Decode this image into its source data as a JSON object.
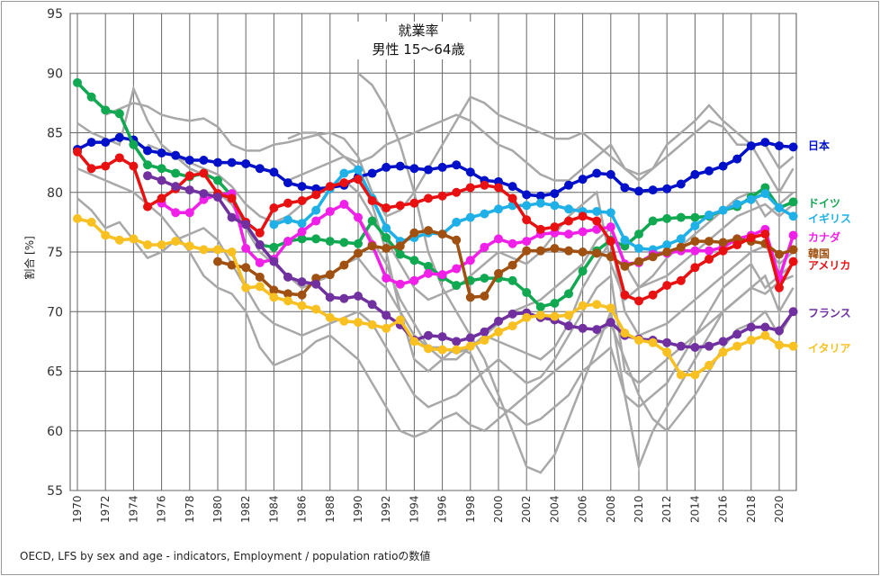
{
  "chart_data": {
    "type": "line",
    "title": "就業率",
    "subtitle": "男性 15〜64歳",
    "xlabel": "",
    "ylabel": "割合 [%]",
    "ylim": [
      55,
      95
    ],
    "xlim": [
      1970,
      2021
    ],
    "yticks": [
      "55",
      "60",
      "65",
      "70",
      "75",
      "80",
      "85",
      "90",
      "95"
    ],
    "xticks": [
      "1970",
      "1972",
      "1974",
      "1976",
      "1978",
      "1980",
      "1982",
      "1984",
      "1986",
      "1988",
      "1990",
      "1992",
      "1994",
      "1996",
      "1998",
      "2000",
      "2002",
      "2004",
      "2006",
      "2008",
      "2010",
      "2012",
      "2014",
      "2016",
      "2018",
      "2020"
    ],
    "grid": true,
    "legend": "right (direct labels)",
    "source": "OECD, LFS by sex and age - indicators, Employment / population ratioの数値",
    "series": [
      {
        "name": "日本",
        "color": "#0010c8",
        "start": 1970,
        "values": [
          83.6,
          84.2,
          84.2,
          84.6,
          84.4,
          83.5,
          83.3,
          83.1,
          82.7,
          82.7,
          82.5,
          82.5,
          82.4,
          82.0,
          81.7,
          80.8,
          80.5,
          80.3,
          80.4,
          80.6,
          81.3,
          81.6,
          82.1,
          82.2,
          82.0,
          81.9,
          82.1,
          82.3,
          81.7,
          81.0,
          80.9,
          80.5,
          79.8,
          79.7,
          79.9,
          80.6,
          81.1,
          81.6,
          81.5,
          80.4,
          80.1,
          80.2,
          80.3,
          80.7,
          81.5,
          81.8,
          82.2,
          82.8,
          83.9,
          84.2,
          83.9,
          83.8
        ]
      },
      {
        "name": "ドイツ",
        "color": "#10a850",
        "start": 1970,
        "values": [
          89.2,
          88.0,
          86.9,
          86.6,
          84.0,
          82.3,
          82.0,
          81.6,
          81.3,
          81.6,
          81.0,
          79.7,
          77.3,
          75.6,
          75.4,
          75.9,
          76.1,
          76.1,
          75.9,
          75.8,
          75.7,
          77.6,
          76.2,
          74.8,
          74.3,
          73.8,
          72.9,
          72.2,
          72.6,
          72.8,
          72.8,
          72.6,
          71.6,
          70.4,
          70.7,
          71.5,
          73.4,
          75.1,
          76.0,
          75.5,
          76.5,
          77.6,
          77.8,
          77.9,
          77.9,
          78.0,
          78.5,
          78.8,
          79.6,
          80.4,
          78.7,
          79.2
        ]
      },
      {
        "name": "イギリス",
        "color": "#20b0e8",
        "start": 1984,
        "values": [
          77.3,
          77.7,
          77.4,
          78.5,
          80.3,
          81.6,
          81.9,
          79.5,
          77.0,
          75.9,
          76.2,
          76.6,
          76.5,
          77.5,
          77.9,
          78.2,
          78.6,
          78.9,
          78.9,
          79.1,
          78.9,
          78.6,
          78.4,
          78.4,
          78.3,
          76.0,
          75.3,
          75.2,
          75.6,
          76.1,
          77.2,
          78.1,
          78.5,
          79.0,
          79.4,
          79.9,
          78.7,
          78.0
        ]
      },
      {
        "name": "カナダ",
        "color": "#f020e8",
        "start": 1976,
        "values": [
          79.1,
          78.3,
          78.3,
          79.4,
          79.8,
          79.9,
          75.3,
          74.1,
          74.4,
          75.9,
          76.7,
          77.6,
          78.4,
          79.0,
          77.9,
          75.6,
          72.8,
          72.3,
          72.6,
          73.2,
          73.1,
          73.6,
          74.3,
          75.4,
          76.1,
          75.7,
          75.9,
          76.5,
          76.6,
          76.5,
          76.7,
          76.9,
          77.1,
          74.0,
          74.1,
          74.8,
          74.9,
          75.1,
          75.1,
          75.1,
          75.4,
          76.1,
          76.4,
          76.9,
          72.8,
          76.4
        ]
      },
      {
        "name": "韓国",
        "color": "#a05010",
        "start": 1980,
        "values": [
          74.2,
          73.9,
          73.7,
          72.9,
          71.8,
          71.5,
          71.4,
          72.8,
          73.1,
          73.9,
          74.9,
          75.5,
          75.3,
          75.5,
          76.6,
          76.8,
          76.5,
          76.0,
          71.2,
          71.3,
          73.2,
          73.9,
          75.1,
          75.1,
          75.3,
          75.1,
          75.0,
          74.9,
          74.6,
          73.8,
          74.2,
          74.6,
          75.0,
          75.4,
          75.9,
          75.9,
          75.8,
          76.1,
          75.9,
          75.7,
          74.8,
          75.2
        ]
      },
      {
        "name": "アメリカ",
        "color": "#e81010",
        "start": 1970,
        "values": [
          83.4,
          82.0,
          82.2,
          82.9,
          82.2,
          78.8,
          79.5,
          80.3,
          81.4,
          81.6,
          79.9,
          79.5,
          77.5,
          76.6,
          78.7,
          79.1,
          79.3,
          79.8,
          80.5,
          80.8,
          81.1,
          79.3,
          78.7,
          78.9,
          79.1,
          79.5,
          79.7,
          80.0,
          80.4,
          80.6,
          80.4,
          79.5,
          77.7,
          76.9,
          77.1,
          77.6,
          78.0,
          77.6,
          75.9,
          71.4,
          70.9,
          71.4,
          72.2,
          72.6,
          73.7,
          74.4,
          75.1,
          75.6,
          76.2,
          76.5,
          72.0,
          74.2
        ]
      },
      {
        "name": "フランス",
        "color": "#7030a0",
        "start": 1975,
        "values": [
          81.4,
          81.0,
          80.5,
          80.2,
          79.9,
          79.6,
          77.9,
          77.3,
          75.6,
          74.2,
          72.9,
          72.5,
          72.3,
          71.2,
          71.1,
          71.3,
          70.6,
          69.7,
          68.9,
          67.6,
          68.0,
          67.9,
          67.5,
          67.8,
          68.3,
          69.2,
          69.8,
          69.9,
          69.5,
          69.3,
          68.8,
          68.6,
          68.5,
          69.1,
          68.0,
          67.7,
          67.6,
          67.4,
          67.1,
          67.0,
          67.1,
          67.5,
          68.1,
          68.7,
          68.7,
          68.4,
          70.0
        ]
      },
      {
        "name": "イタリア",
        "color": "#f8c020",
        "start": 1970,
        "values": [
          77.8,
          77.5,
          76.4,
          76.0,
          76.1,
          75.6,
          75.6,
          75.9,
          75.5,
          75.2,
          75.2,
          75.0,
          72.0,
          72.1,
          71.2,
          70.9,
          70.5,
          70.2,
          69.5,
          69.2,
          69.1,
          68.9,
          68.6,
          69.3,
          67.5,
          66.9,
          66.8,
          66.8,
          67.1,
          67.6,
          68.3,
          68.8,
          69.5,
          69.7,
          69.6,
          69.7,
          70.5,
          70.6,
          70.3,
          68.2,
          67.6,
          67.4,
          66.6,
          64.7,
          64.7,
          65.5,
          66.6,
          67.1,
          67.6,
          68.0,
          67.2,
          67.1
        ]
      }
    ],
    "other_series": [
      {
        "start": 1970,
        "values": [
          85.8,
          85.0,
          84.5,
          84.0,
          88.7,
          86.0,
          84.0,
          83.0,
          82.0,
          81.5,
          80.0,
          79.0,
          77.0,
          75.0,
          74.0,
          73.0,
          72.0,
          72.5,
          73.0,
          74.0,
          74.5,
          73.0,
          72.0,
          70.0,
          68.0,
          67.0,
          67.0,
          66.5,
          67.0,
          68.0,
          69.0,
          70.0,
          70.5,
          71.0,
          72.0,
          73.0,
          74.0,
          76.0,
          77.0,
          74.0,
          72.0,
          72.5,
          73.0,
          74.0,
          75.0,
          76.0,
          77.0,
          78.0,
          78.5,
          79.0,
          78.0,
          79.0
        ]
      },
      {
        "start": 1970,
        "values": [
          79.5,
          78.5,
          77.0,
          77.5,
          76.0,
          74.5,
          75.0,
          76.0,
          76.5,
          77.0,
          76.0,
          74.0,
          72.0,
          70.0,
          69.0,
          68.5,
          68.0,
          68.5,
          69.0,
          69.5,
          70.0,
          69.0,
          67.0,
          65.0,
          63.0,
          62.0,
          62.5,
          63.0,
          64.0,
          65.0,
          66.0,
          65.0,
          64.0,
          64.5,
          66.0,
          68.0,
          70.0,
          72.0,
          73.0,
          65.0,
          64.0,
          65.0,
          66.0,
          67.0,
          68.0,
          69.0,
          70.0,
          71.0,
          72.0,
          73.0,
          70.0,
          72.0
        ]
      },
      {
        "start": 1972,
        "values": [
          86.5,
          87.0,
          87.5,
          87.2,
          86.5,
          86.2,
          86.0,
          86.2,
          85.5,
          84.0,
          83.5,
          83.5,
          84.0,
          84.2,
          84.5,
          84.8,
          85.0,
          84.5,
          83.0,
          80.0,
          78.0,
          78.5,
          80.0,
          82.0,
          84.0,
          86.0,
          88.0,
          87.5,
          86.5,
          86.0,
          85.5,
          85.0,
          84.5,
          84.5,
          85.0,
          84.0,
          83.0,
          82.0,
          81.5,
          82.0,
          83.0,
          84.0,
          85.0,
          86.0,
          85.5,
          84.0,
          84.0,
          84.0,
          82.0,
          83.0
        ]
      },
      {
        "start": 1975,
        "values": [
          84.0,
          83.5,
          83.0,
          82.5,
          82.0,
          81.5,
          80.5,
          79.0,
          78.0,
          77.5,
          78.0,
          79.0,
          80.0,
          80.5,
          81.0,
          80.0,
          78.0,
          76.0,
          74.0,
          72.0,
          71.0,
          71.5,
          72.0,
          73.0,
          74.0,
          75.0,
          74.5,
          74.0,
          75.0,
          76.5,
          78.0,
          79.0,
          80.0,
          74.0,
          71.0,
          72.0,
          73.0,
          74.5,
          75.5,
          76.5,
          77.5,
          78.5,
          79.5,
          80.0,
          78.0,
          79.0,
          80.0
        ]
      },
      {
        "start": 1985,
        "values": [
          81.0,
          81.5,
          82.0,
          82.5,
          83.0,
          82.0,
          79.0,
          75.0,
          70.0,
          66.0,
          65.0,
          66.0,
          67.0,
          66.5,
          64.0,
          62.0,
          61.5,
          60.5,
          61.0,
          62.0,
          63.0,
          65.0,
          66.0,
          67.0,
          63.0,
          62.0,
          63.0,
          64.0,
          66.0,
          68.0,
          70.0,
          72.0,
          73.0,
          74.0,
          72.0,
          73.0,
          74.0
        ]
      },
      {
        "start": 1990,
        "values": [
          90.0,
          89.0,
          87.0,
          84.0,
          80.0,
          75.0,
          72.0,
          70.0,
          68.0,
          66.0,
          63.0,
          60.0,
          57.0,
          56.5,
          58.0,
          61.0,
          64.0,
          67.0,
          70.0,
          63.0,
          57.0,
          60.0,
          62.0,
          64.0,
          66.0,
          68.0,
          70.0,
          71.0,
          72.0,
          71.5,
          72.5,
          73.0
        ]
      },
      {
        "start": 1970,
        "values": [
          82.0,
          81.5,
          81.0,
          80.5,
          80.0,
          79.0,
          78.0,
          76.5,
          75.0,
          73.0,
          72.0,
          71.5,
          70.0,
          67.0,
          65.5,
          66.0,
          66.5,
          67.5,
          68.0,
          67.0,
          66.0,
          64.0,
          62.0,
          60.0,
          59.5,
          60.0,
          61.0,
          61.5,
          60.5,
          60.0,
          61.0,
          62.0,
          63.0,
          64.0,
          65.0,
          66.0,
          67.0,
          68.0,
          69.0,
          66.0,
          63.0,
          61.0,
          60.0,
          61.5,
          63.0,
          65.0,
          67.0,
          68.5,
          69.0,
          70.0,
          68.0,
          70.0
        ]
      },
      {
        "start": 1985,
        "values": [
          84.5,
          85.0,
          85.0,
          84.0,
          83.0,
          82.5,
          83.0,
          84.0,
          84.5,
          85.0,
          85.5,
          86.0,
          86.5,
          86.0,
          85.0,
          84.0,
          83.5,
          82.5,
          81.5,
          81.0,
          81.0,
          82.0,
          83.0,
          84.0,
          82.0,
          81.0,
          82.0,
          84.0,
          85.0,
          86.0,
          87.3,
          86.0,
          85.0,
          84.0,
          82.0,
          80.0,
          82.0
        ]
      },
      {
        "start": 1990,
        "values": [
          78.0,
          76.0,
          74.0,
          71.0,
          69.0,
          67.0,
          66.0,
          66.0,
          67.0,
          68.0,
          67.5,
          67.0,
          66.5,
          66.0,
          67.0,
          69.0,
          72.0,
          74.0,
          76.0,
          70.0,
          68.0,
          68.5,
          69.0,
          70.0,
          71.0,
          72.0,
          73.0,
          74.0,
          75.0,
          75.5,
          74.0,
          75.0
        ]
      }
    ]
  }
}
